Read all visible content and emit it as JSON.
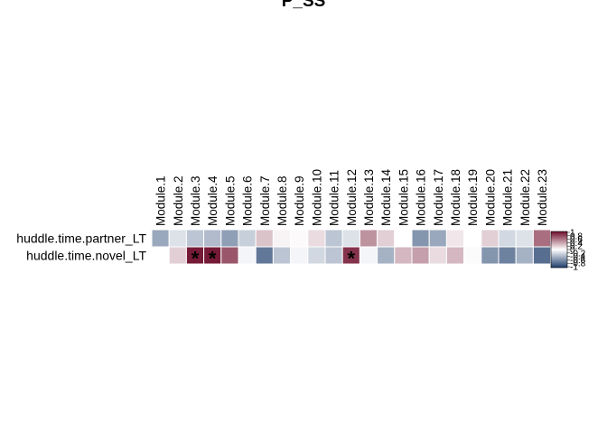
{
  "chart_data": {
    "type": "heatmap",
    "title": "P_SS",
    "columns": [
      "Module.1",
      "Module.2",
      "Module.3",
      "Module.4",
      "Module.5",
      "Module.6",
      "Module.7",
      "Module.8",
      "Module.9",
      "Module.10",
      "Module.11",
      "Module.12",
      "Module.13",
      "Module.14",
      "Module.15",
      "Module.16",
      "Module.17",
      "Module.18",
      "Module.19",
      "Module.20",
      "Module.21",
      "Module.22",
      "Module.23"
    ],
    "rows": [
      "huddle.time.partner_LT",
      "huddle.time.novel_LT"
    ],
    "values": [
      [
        -0.45,
        -0.15,
        -0.3,
        -0.35,
        -0.5,
        -0.25,
        0.25,
        0.05,
        0.02,
        0.15,
        -0.3,
        -0.15,
        0.45,
        0.2,
        0.0,
        -0.55,
        -0.45,
        0.1,
        0.0,
        0.2,
        -0.2,
        -0.15,
        0.6
      ],
      [
        0.0,
        0.2,
        0.95,
        0.95,
        0.7,
        -0.05,
        -0.7,
        -0.3,
        -0.05,
        -0.2,
        -0.3,
        0.85,
        -0.05,
        -0.4,
        0.3,
        0.4,
        0.15,
        0.3,
        -0.02,
        -0.55,
        -0.65,
        -0.4,
        -0.75
      ]
    ],
    "significance": [
      [],
      [
        "Module.3",
        "Module.4",
        "Module.12"
      ]
    ],
    "significance_marker": "*",
    "legend": {
      "position": "right",
      "ticks": [
        "1",
        "0.8",
        "0.6",
        "0.4",
        "0.2",
        "0",
        "-0.2",
        "-0.4",
        "-0.6",
        "-0.8",
        "-1"
      ],
      "range": [
        -1,
        1
      ],
      "colors": {
        "low": "#1f3e6c",
        "mid": "#ffffff",
        "high": "#6f0f2c"
      }
    }
  }
}
